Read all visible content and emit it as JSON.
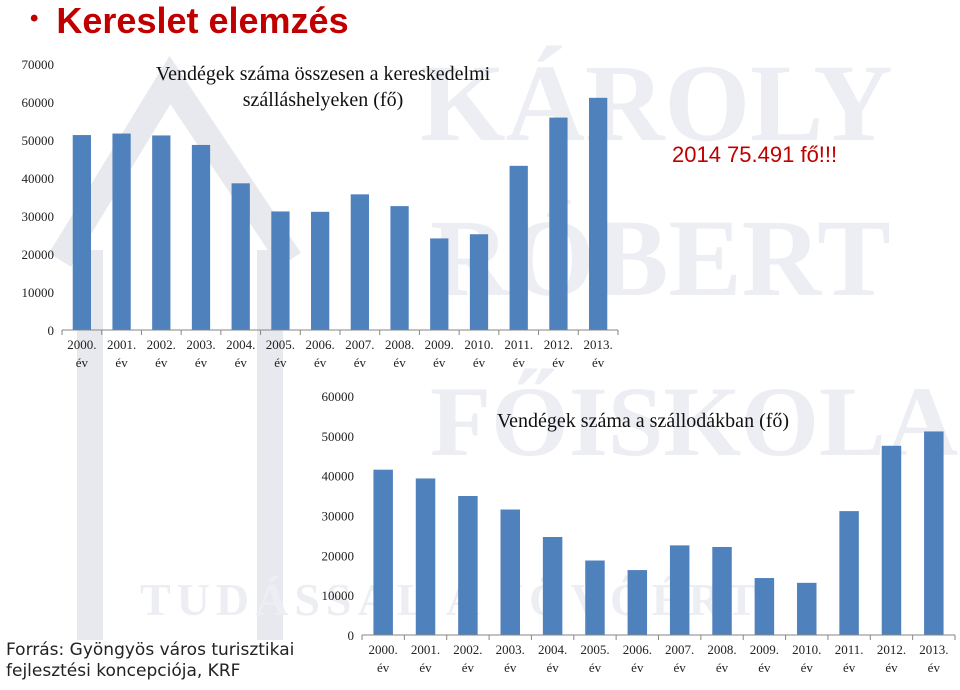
{
  "slide": {
    "title": "Kereslet elemzés",
    "highlight": "2014 75.491 fő!!!",
    "source": "Forrás: Gyöngyös város turisztikai fejlesztési koncepciója, KRF"
  },
  "colors": {
    "bar": "#4f81bd",
    "title": "#c00000",
    "axis": "#868686",
    "watermark": "#e8e8ee"
  },
  "chart_data": [
    {
      "type": "bar",
      "title": "Vendégek száma összesen a kereskedelmi szálláshelyeken (fő)",
      "categories": [
        "2000. év",
        "2001. év",
        "2002. év",
        "2003. év",
        "2004. év",
        "2005. év",
        "2006. év",
        "2007. év",
        "2008. év",
        "2009. év",
        "2010. év",
        "2011. év",
        "2012. év",
        "2013. év"
      ],
      "values": [
        51300,
        51700,
        51200,
        48700,
        38600,
        31200,
        31100,
        35700,
        32600,
        24100,
        25200,
        43200,
        55900,
        61100
      ],
      "ylim": [
        0,
        70000
      ],
      "yticks": [
        0,
        10000,
        20000,
        30000,
        40000,
        50000,
        60000,
        70000
      ],
      "grid": false,
      "legend": false
    },
    {
      "type": "bar",
      "title": "Vendégek száma a szállodákban (fő)",
      "categories": [
        "2000. év",
        "2001. év",
        "2002. év",
        "2003. év",
        "2004. év",
        "2005. év",
        "2006. év",
        "2007. év",
        "2008. év",
        "2009. év",
        "2010. év",
        "2011. év",
        "2012. év",
        "2013. év"
      ],
      "values": [
        41500,
        39300,
        34900,
        31500,
        24600,
        18700,
        16300,
        22500,
        22100,
        14300,
        13100,
        31100,
        47500,
        51100
      ],
      "ylim": [
        0,
        60000
      ],
      "yticks": [
        0,
        10000,
        20000,
        30000,
        40000,
        50000,
        60000
      ],
      "grid": false,
      "legend": false
    }
  ]
}
